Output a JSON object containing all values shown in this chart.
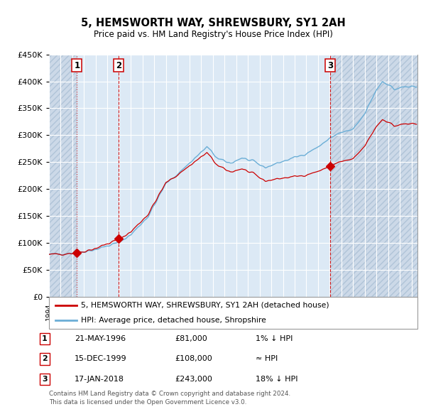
{
  "title": "5, HEMSWORTH WAY, SHREWSBURY, SY1 2AH",
  "subtitle": "Price paid vs. HM Land Registry's House Price Index (HPI)",
  "hpi_color": "#6baed6",
  "price_color": "#cc0000",
  "xmin": 1994.0,
  "xmax": 2025.5,
  "ymin": 0,
  "ymax": 450000,
  "yticks": [
    0,
    50000,
    100000,
    150000,
    200000,
    250000,
    300000,
    350000,
    400000,
    450000
  ],
  "sales": [
    {
      "num": 1,
      "date_num": 1996.39,
      "price": 81000,
      "label": "1"
    },
    {
      "num": 2,
      "date_num": 1999.96,
      "price": 108000,
      "label": "2"
    },
    {
      "num": 3,
      "date_num": 2018.05,
      "price": 243000,
      "label": "3"
    }
  ],
  "legend_entries": [
    {
      "label": "5, HEMSWORTH WAY, SHREWSBURY, SY1 2AH (detached house)",
      "color": "#cc0000"
    },
    {
      "label": "HPI: Average price, detached house, Shropshire",
      "color": "#6baed6"
    }
  ],
  "table_rows": [
    {
      "num": 1,
      "date": "21-MAY-1996",
      "price": "£81,000",
      "vs_hpi": "1% ↓ HPI"
    },
    {
      "num": 2,
      "date": "15-DEC-1999",
      "price": "£108,000",
      "vs_hpi": "≈ HPI"
    },
    {
      "num": 3,
      "date": "17-JAN-2018",
      "price": "£243,000",
      "vs_hpi": "18% ↓ HPI"
    }
  ],
  "footer": "Contains HM Land Registry data © Crown copyright and database right 2024.\nThis data is licensed under the Open Government Licence v3.0."
}
